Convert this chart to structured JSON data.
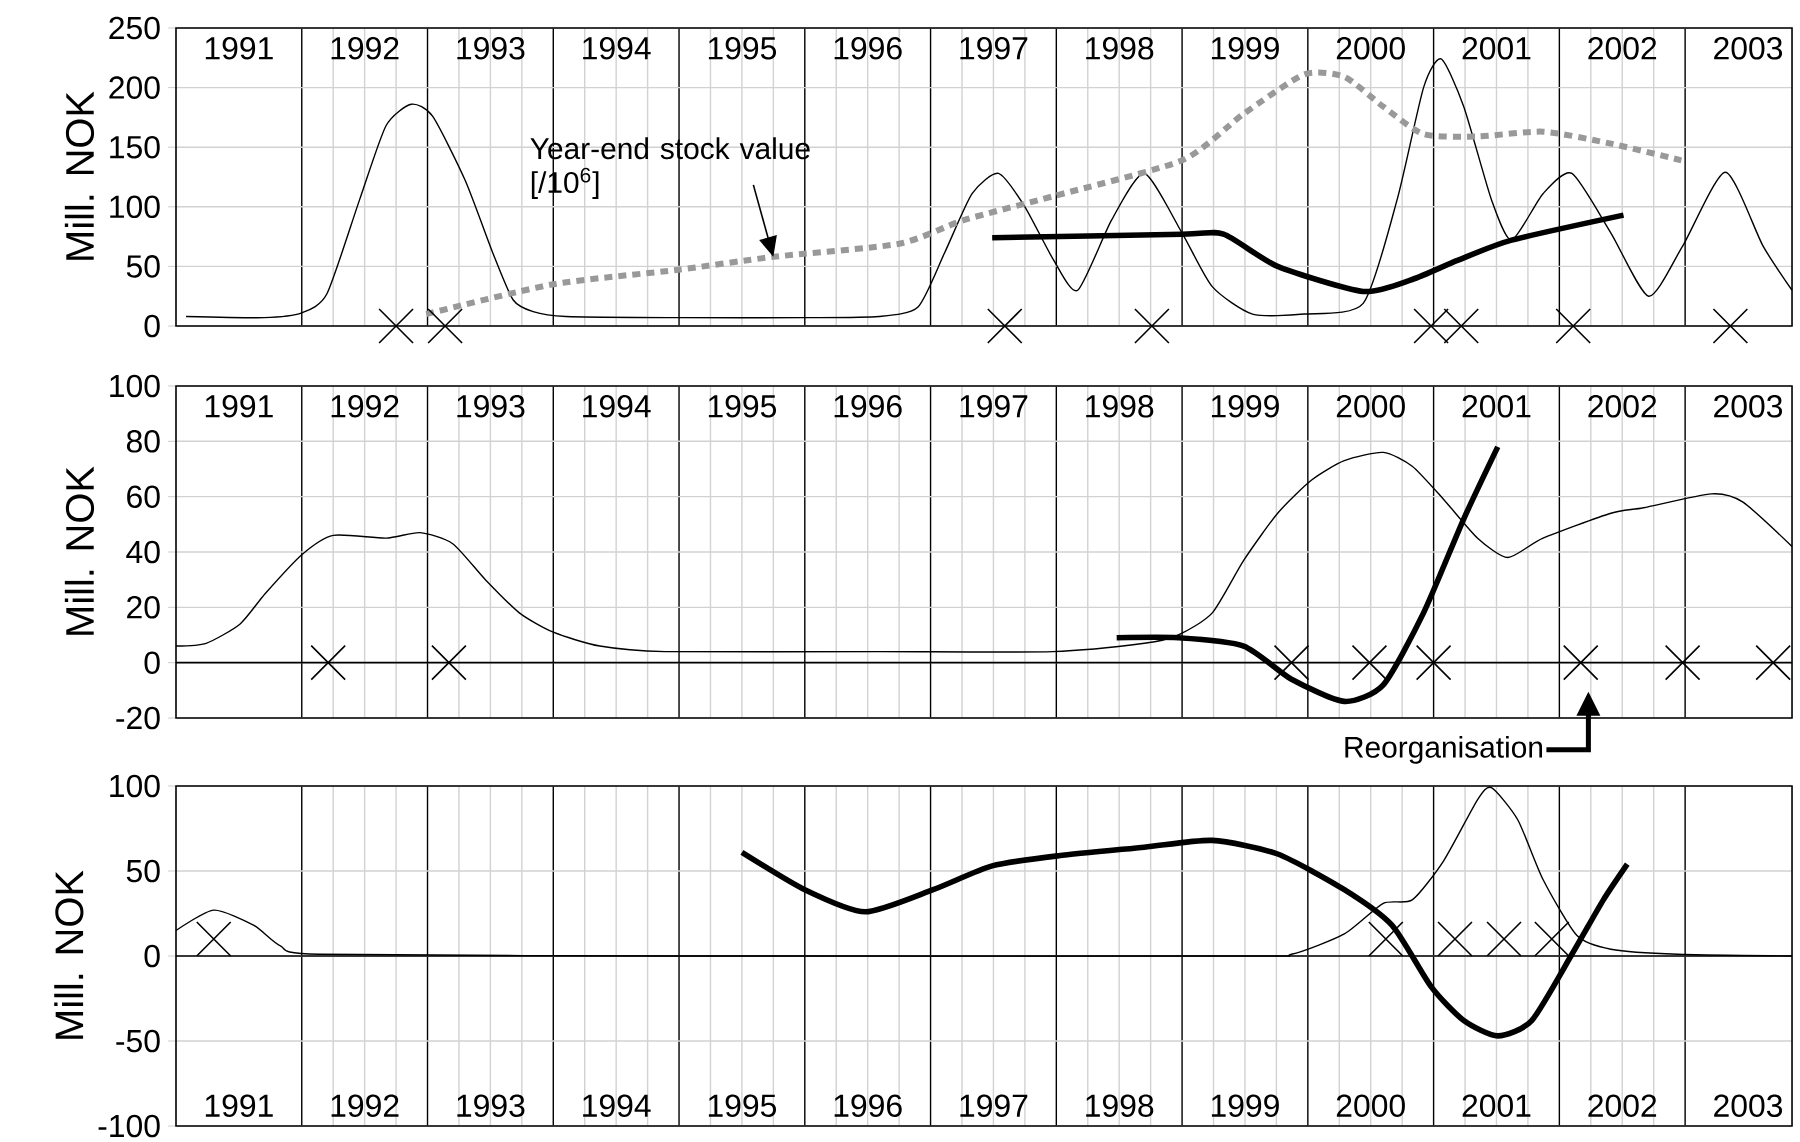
{
  "chart_data": [
    {
      "type": "line",
      "ylabel": "Mill. NOK",
      "xlim": [
        1991,
        2003.85
      ],
      "ylim": [
        0,
        250
      ],
      "yticks": [
        0,
        50,
        100,
        150,
        200,
        250
      ],
      "grid": true,
      "xticks": [
        {
          "value": 1992,
          "label": null
        },
        {
          "value": 1993,
          "label": null
        },
        {
          "value": 1994,
          "label": null
        },
        {
          "value": 1995,
          "label": null
        },
        {
          "value": 1996,
          "label": null
        },
        {
          "value": 1997,
          "label": null
        },
        {
          "value": 1998,
          "label": null
        },
        {
          "value": 1999,
          "label": null
        },
        {
          "value": 2000,
          "label": null
        },
        {
          "value": 2001,
          "label": null
        },
        {
          "value": 2002,
          "label": null
        },
        {
          "value": 2003,
          "label": null
        },
        {
          "value": 1991.5,
          "label": "1991"
        },
        {
          "value": 1992.5,
          "label": "1992"
        },
        {
          "value": 1993.5,
          "label": "1993"
        },
        {
          "value": 1994.5,
          "label": "1994"
        },
        {
          "value": 1995.5,
          "label": "1995"
        },
        {
          "value": 1996.5,
          "label": "1996"
        },
        {
          "value": 1997.5,
          "label": "1997"
        },
        {
          "value": 1998.5,
          "label": "1998"
        },
        {
          "value": 1999.5,
          "label": "1999"
        },
        {
          "value": 2000.5,
          "label": "2000"
        },
        {
          "value": 2001.5,
          "label": "2001"
        },
        {
          "value": 2002.5,
          "label": "2002"
        },
        {
          "value": 2003.5,
          "label": "2003"
        }
      ],
      "series": [
        {
          "type": "line",
          "color": "#000000",
          "x": [
            1991.08,
            1991.7,
            1992.0,
            1992.2,
            1992.46,
            1992.67,
            1992.87,
            1993.04,
            1993.3,
            1993.52,
            1993.68,
            1993.84,
            1994.1,
            1995.0,
            1996.0,
            1996.59,
            1996.9,
            1997.11,
            1997.33,
            1997.54,
            1997.75,
            1997.98,
            1998.17,
            1998.44,
            1998.7,
            1999.0,
            1999.24,
            1999.56,
            1999.97,
            2000.44,
            2000.71,
            2000.92,
            2001.06,
            2001.24,
            2001.46,
            2001.62,
            2001.87,
            2002.1,
            2002.41,
            2002.71,
            2002.98,
            2003.32,
            2003.62,
            2003.85
          ],
          "values": [
            8,
            7,
            11,
            27,
            106,
            168,
            186,
            176,
            122,
            61,
            22,
            12,
            8,
            7,
            7,
            8,
            16,
            61,
            111,
            128,
            100,
            55,
            30,
            89,
            128,
            78,
            33,
            10,
            10,
            19,
            106,
            200,
            224,
            184,
            106,
            72,
            111,
            128,
            78,
            25,
            67,
            129,
            67,
            30
          ]
        },
        {
          "type": "line",
          "color": "#000000",
          "x": [
            1997.49,
            1999.0,
            1999.33,
            1999.76,
            2000.44,
            2000.83,
            2001.19,
            2001.62,
            2002.51
          ],
          "values": [
            74,
            77,
            77,
            50,
            29,
            39,
            55,
            72,
            93
          ]
        },
        {
          "type": "line",
          "color": "#999999",
          "line_style": "dashed",
          "x": [
            1992.99,
            1994.0,
            1994.98,
            1995.75,
            1996.75,
            1997.27,
            1997.98,
            1999.0,
            1999.49,
            1999.97,
            2000.29,
            2000.6,
            2000.92,
            2001.35,
            2001.87,
            2002.41,
            2002.97
          ],
          "values": [
            10,
            35,
            47,
            58,
            69,
            89,
            109,
            139,
            178,
            211,
            209,
            184,
            161,
            159,
            163,
            153,
            139
          ]
        },
        {
          "type": "scatter",
          "color": "#000000",
          "marker": "cross",
          "x": [
            1992.75,
            1993.14,
            1997.59,
            1998.76,
            2000.98,
            2001.22,
            2002.11,
            2003.36
          ],
          "values": [
            0,
            0,
            0,
            0,
            0,
            0,
            0,
            0
          ]
        }
      ],
      "annotations": [
        {
          "text": "Year-end stock value [/10$^{6}$]",
          "x": 1995.75,
          "y": 58
        }
      ]
    },
    {
      "type": "line",
      "ylabel": "Mill. NOK",
      "xlim": [
        1991,
        2003.85
      ],
      "ylim": [
        -20,
        100
      ],
      "yticks": [
        -20,
        0,
        20,
        40,
        60,
        80,
        100
      ],
      "grid": true,
      "xticks": [
        {
          "value": 1992,
          "label": null
        },
        {
          "value": 1993,
          "label": null
        },
        {
          "value": 1994,
          "label": null
        },
        {
          "value": 1995,
          "label": null
        },
        {
          "value": 1996,
          "label": null
        },
        {
          "value": 1997,
          "label": null
        },
        {
          "value": 1998,
          "label": null
        },
        {
          "value": 1999,
          "label": null
        },
        {
          "value": 2000,
          "label": null
        },
        {
          "value": 2001,
          "label": null
        },
        {
          "value": 2002,
          "label": null
        },
        {
          "value": 2003,
          "label": null
        },
        {
          "value": 1991.5,
          "label": "1991"
        },
        {
          "value": 1992.5,
          "label": "1992"
        },
        {
          "value": 1993.5,
          "label": "1993"
        },
        {
          "value": 1994.5,
          "label": "1994"
        },
        {
          "value": 1995.5,
          "label": "1995"
        },
        {
          "value": 1996.5,
          "label": "1996"
        },
        {
          "value": 1997.5,
          "label": "1997"
        },
        {
          "value": 1998.5,
          "label": "1998"
        },
        {
          "value": 1999.5,
          "label": "1999"
        },
        {
          "value": 2000.5,
          "label": "2000"
        },
        {
          "value": 2001.5,
          "label": "2001"
        },
        {
          "value": 2002.5,
          "label": "2002"
        },
        {
          "value": 2003.5,
          "label": "2003"
        }
      ],
      "series": [
        {
          "type": "line",
          "color": "#000000",
          "x": [
            1991.0,
            1991.24,
            1991.51,
            1991.71,
            1992.0,
            1992.25,
            1992.67,
            1992.94,
            1993.2,
            1993.46,
            1993.73,
            1994.0,
            1994.37,
            1994.89,
            1996.59,
            1997.97,
            1998.7,
            1998.97,
            1999.24,
            1999.49,
            1999.76,
            2000.03,
            2000.29,
            2000.6,
            2000.83,
            2001.08,
            2001.35,
            2001.59,
            2001.87,
            2002.41,
            2002.67,
            2003.21,
            2003.46,
            2003.85
          ],
          "values": [
            6,
            7,
            14,
            25,
            39,
            46,
            45,
            47,
            43,
            30,
            18,
            11,
            6,
            4,
            4,
            4,
            7,
            10,
            18,
            37,
            54,
            66,
            73,
            76,
            71,
            59,
            45,
            38,
            45,
            54,
            56,
            61,
            58,
            42
          ]
        },
        {
          "type": "line",
          "color": "#000000",
          "x": [
            1998.48,
            1998.97,
            1999.49,
            1999.87,
            2000.29,
            2000.6,
            2000.92,
            2001.24,
            2001.51
          ],
          "values": [
            9,
            9,
            6,
            -6,
            -14,
            -8,
            18,
            52,
            78
          ]
        },
        {
          "type": "scatter",
          "color": "#000000",
          "marker": "cross",
          "x": [
            1992.21,
            1993.17,
            1999.87,
            2000.49,
            2001.0,
            2002.17,
            2002.98,
            2003.7
          ],
          "values": [
            0,
            0,
            0,
            0,
            0,
            0,
            0,
            0
          ]
        }
      ],
      "annotations": [
        "Reorganisation"
      ]
    },
    {
      "type": "line",
      "ylabel": "Mill. NOK",
      "xlim": [
        1991,
        2003.85
      ],
      "ylim": [
        -100,
        100
      ],
      "yticks": [
        -100,
        -50,
        0,
        50,
        100
      ],
      "grid": true,
      "xticks": [
        {
          "value": 1992,
          "label": null
        },
        {
          "value": 1993,
          "label": null
        },
        {
          "value": 1994,
          "label": null
        },
        {
          "value": 1995,
          "label": null
        },
        {
          "value": 1996,
          "label": null
        },
        {
          "value": 1997,
          "label": null
        },
        {
          "value": 1998,
          "label": null
        },
        {
          "value": 1999,
          "label": null
        },
        {
          "value": 2000,
          "label": null
        },
        {
          "value": 2001,
          "label": null
        },
        {
          "value": 2002,
          "label": null
        },
        {
          "value": 2003,
          "label": null
        },
        {
          "value": 1991.5,
          "label": "1991"
        },
        {
          "value": 1992.5,
          "label": "1992"
        },
        {
          "value": 1993.5,
          "label": "1993"
        },
        {
          "value": 1994.5,
          "label": "1994"
        },
        {
          "value": 1995.5,
          "label": "1995"
        },
        {
          "value": 1996.5,
          "label": "1996"
        },
        {
          "value": 1997.5,
          "label": "1997"
        },
        {
          "value": 1998.5,
          "label": "1998"
        },
        {
          "value": 1999.5,
          "label": "1999"
        },
        {
          "value": 2000.5,
          "label": "2000"
        },
        {
          "value": 2001.5,
          "label": "2001"
        },
        {
          "value": 2002.5,
          "label": "2002"
        },
        {
          "value": 2003.5,
          "label": "2003"
        }
      ],
      "series": [
        {
          "type": "line",
          "color": "#000000",
          "x": [
            1991.0,
            1991.3,
            1991.62,
            1991.83,
            1992.14,
            1995.0,
            1999.5,
            1999.87,
            2000.29,
            2000.6,
            2000.83,
            2001.08,
            2001.35,
            2001.46,
            2001.67,
            2001.87,
            2002.14,
            2002.41,
            2002.94,
            2003.85
          ],
          "values": [
            15,
            27,
            18,
            6,
            1,
            0,
            0,
            1,
            13,
            31,
            33,
            56,
            92,
            99,
            80,
            45,
            12,
            4,
            1,
            0
          ]
        },
        {
          "type": "line",
          "color": "#000000",
          "x": [
            1995.5,
            1996.0,
            1996.48,
            1997.02,
            1997.49,
            1998.02,
            1998.7,
            1999.24,
            1999.76,
            2000.29,
            2000.67,
            2000.98,
            2001.24,
            2001.51,
            2001.78,
            2002.1,
            2002.35,
            2002.54
          ],
          "values": [
            61,
            39,
            26,
            39,
            53,
            59,
            64,
            68,
            60,
            39,
            18,
            -18,
            -38,
            -47,
            -38,
            1,
            33,
            54
          ]
        },
        {
          "type": "scatter",
          "color": "#000000",
          "marker": "cross",
          "x": [
            1991.3,
            2000.62,
            2001.17,
            2001.56,
            2001.94
          ],
          "values": [
            10,
            10,
            10,
            10,
            10
          ]
        }
      ]
    }
  ]
}
